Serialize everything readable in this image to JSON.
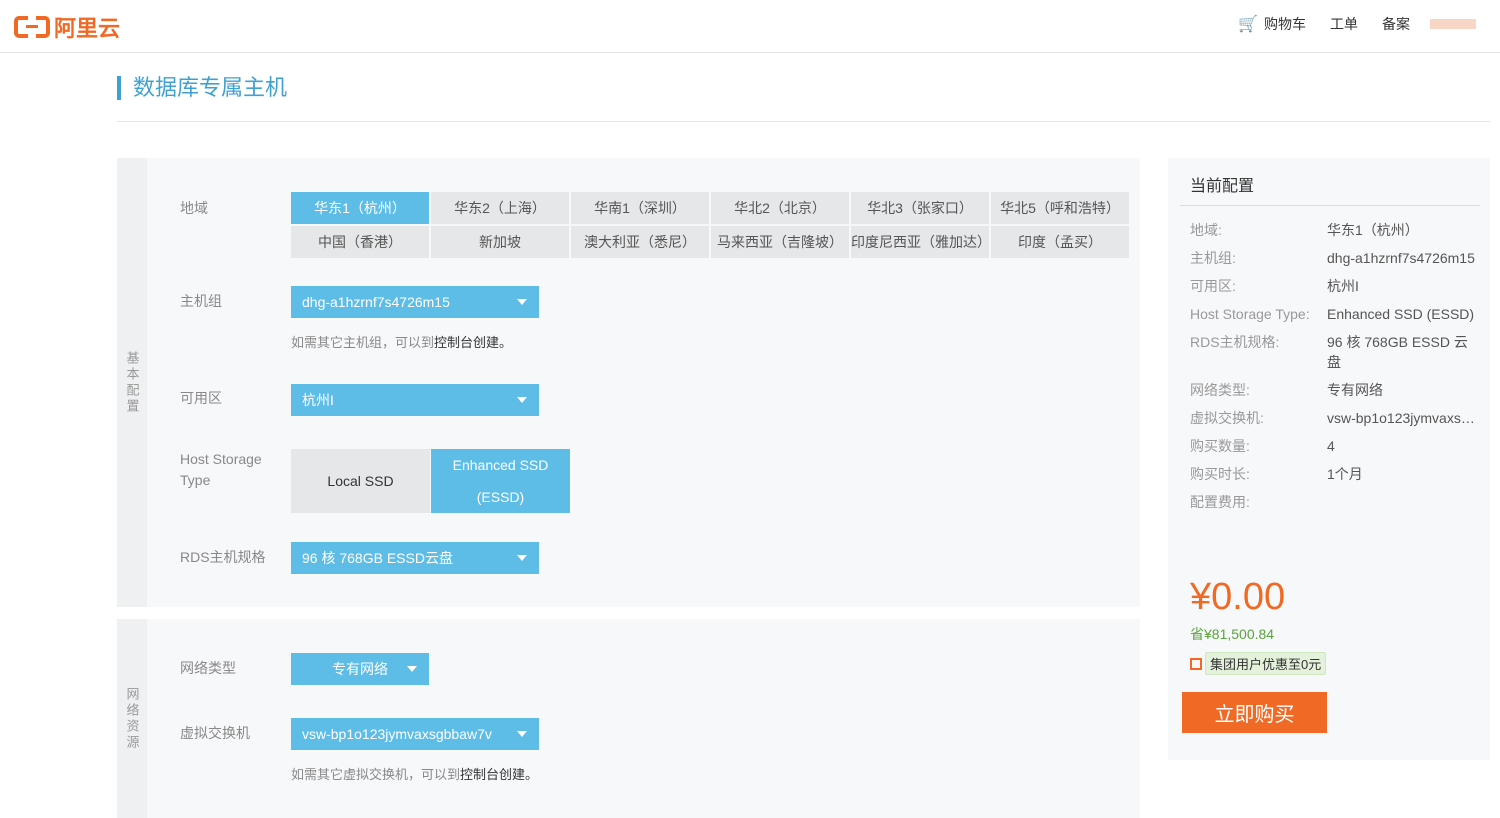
{
  "header": {
    "logo": "阿里云",
    "nav": [
      "购物车",
      "工单",
      "备案"
    ]
  },
  "page_title": "数据库专属主机",
  "basic": {
    "section_label": "基本配置",
    "region_label": "地域",
    "regions": [
      "华东1（杭州）",
      "华东2（上海）",
      "华南1（深圳）",
      "华北2（北京）",
      "华北3（张家口）",
      "华北5（呼和浩特）",
      "中国（香港）",
      "新加坡",
      "澳大利亚（悉尼）",
      "马来西亚（吉隆坡）",
      "印度尼西亚（雅加达）",
      "印度（孟买）"
    ],
    "selected_region": "华东1（杭州）",
    "host_group_label": "主机组",
    "host_group_value": "dhg-a1hzrnf7s4726m15",
    "host_group_hint": "如需其它主机组，可以到",
    "host_group_hint_link": "控制台创建。",
    "zone_label": "可用区",
    "zone_value": "杭州I",
    "storage_label": "Host Storage Type",
    "storage_options": [
      "Local SSD",
      "Enhanced SSD (ESSD)"
    ],
    "storage_selected": "Enhanced SSD (ESSD)",
    "spec_label": "RDS主机规格",
    "spec_value": "96 核 768GB ESSD云盘"
  },
  "network": {
    "section_label": "网络资源",
    "type_label": "网络类型",
    "type_value": "专有网络",
    "vswitch_label": "虚拟交换机",
    "vswitch_value": "vsw-bp1o123jymvaxsgbbaw7v",
    "vswitch_hint": "如需其它虚拟交换机，可以到",
    "vswitch_hint_link": "控制台创建。"
  },
  "summary": {
    "title": "当前配置",
    "rows": [
      {
        "k": "地域:",
        "v": "华东1（杭州）"
      },
      {
        "k": "主机组:",
        "v": "dhg-a1hzrnf7s4726m15"
      },
      {
        "k": "可用区:",
        "v": "杭州I"
      },
      {
        "k": "Host Storage Type:",
        "v": "Enhanced SSD (ESSD)"
      },
      {
        "k": "RDS主机规格:",
        "v": "96 核 768GB ESSD 云盘"
      },
      {
        "k": "网络类型:",
        "v": "专有网络"
      },
      {
        "k": "虚拟交换机:",
        "v": "vsw-bp1o123jymvaxs…"
      },
      {
        "k": "购买数量:",
        "v": "4"
      },
      {
        "k": "购买时长:",
        "v": "1个月"
      },
      {
        "k": "配置费用:",
        "v": ""
      }
    ],
    "price": "¥0.00",
    "savings": "省¥81,500.84",
    "promo": "集团用户优惠至0元",
    "buy_label": "立即购买"
  },
  "colors": {
    "accent": "#5dbde6",
    "brand": "#f06a25",
    "savings": "#5ba33c"
  }
}
